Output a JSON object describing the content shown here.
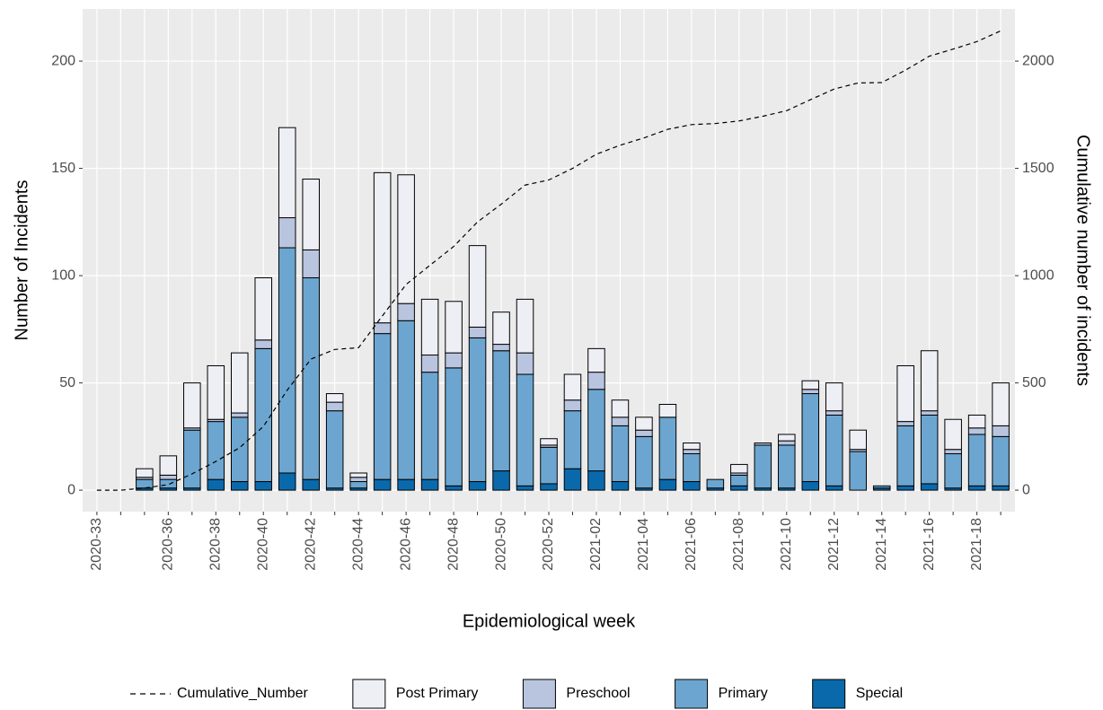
{
  "chart_data": {
    "type": "bar",
    "stacked": true,
    "x_label": "Epidemiological week",
    "y_label": "Number of Incidents",
    "y2_label": "Cumulative number of incidents",
    "categories": [
      "2020-33",
      null,
      null,
      "2020-36",
      null,
      "2020-38",
      null,
      "2020-40",
      null,
      "2020-42",
      null,
      "2020-44",
      null,
      "2020-46",
      null,
      "2020-48",
      null,
      "2020-50",
      null,
      "2020-52",
      null,
      "2021-02",
      null,
      "2021-04",
      null,
      "2021-06",
      null,
      "2021-08",
      null,
      "2021-10",
      null,
      "2021-12",
      null,
      "2021-14",
      null,
      "2021-16",
      null,
      "2021-18",
      null
    ],
    "series": [
      {
        "name": "Cumulative_Number",
        "type": "line",
        "axis": "y2",
        "color": "#000000",
        "dashed": true,
        "values": [
          0,
          0,
          10,
          26,
          76,
          134,
          198,
          297,
          466,
          611,
          656,
          664,
          812,
          959,
          1048,
          1136,
          1250,
          1333,
          1422,
          1446,
          1500,
          1566,
          1608,
          1642,
          1682,
          1704,
          1709,
          1721,
          1743,
          1769,
          1820,
          1870,
          1898,
          1900,
          1958,
          2023,
          2056,
          2091,
          2141
        ]
      },
      {
        "name": "Post Primary",
        "type": "bar",
        "color": "#eeeef5",
        "values": [
          0,
          0,
          4,
          9,
          21,
          25,
          28,
          29,
          42,
          33,
          4,
          2,
          70,
          60,
          26,
          24,
          38,
          15,
          25,
          3,
          12,
          11,
          8,
          6,
          6,
          3,
          0,
          4,
          0,
          3,
          4,
          13,
          9,
          0,
          26,
          28,
          14,
          6,
          20
        ]
      },
      {
        "name": "Preschool",
        "type": "bar",
        "color": "#b9c5df",
        "values": [
          0,
          0,
          1,
          2,
          1,
          1,
          2,
          4,
          14,
          13,
          4,
          2,
          5,
          8,
          8,
          7,
          5,
          3,
          10,
          1,
          5,
          8,
          4,
          3,
          0,
          2,
          0,
          1,
          1,
          2,
          2,
          2,
          1,
          0,
          2,
          2,
          2,
          3,
          5
        ]
      },
      {
        "name": "Primary",
        "type": "bar",
        "color": "#6ca6d0",
        "values": [
          0,
          0,
          4,
          4,
          27,
          27,
          30,
          62,
          105,
          94,
          36,
          3,
          68,
          74,
          50,
          55,
          67,
          56,
          52,
          17,
          27,
          38,
          26,
          24,
          29,
          13,
          4,
          5,
          20,
          20,
          41,
          33,
          18,
          1,
          28,
          32,
          16,
          24,
          23
        ]
      },
      {
        "name": "Special",
        "type": "bar",
        "color": "#0a69ab",
        "values": [
          0,
          0,
          1,
          1,
          1,
          5,
          4,
          4,
          8,
          5,
          1,
          1,
          5,
          5,
          5,
          2,
          4,
          9,
          2,
          3,
          10,
          9,
          4,
          1,
          5,
          4,
          1,
          2,
          1,
          1,
          4,
          2,
          0,
          1,
          2,
          3,
          1,
          2,
          2
        ]
      }
    ],
    "ylim": [
      -10,
      224.3
    ],
    "yticks": [
      0,
      50,
      100,
      150,
      200
    ],
    "y2lim": [
      -100,
      2243
    ],
    "y2ticks": [
      0,
      500,
      1000,
      1500,
      2000
    ],
    "grid": true,
    "legend": "bottom"
  }
}
